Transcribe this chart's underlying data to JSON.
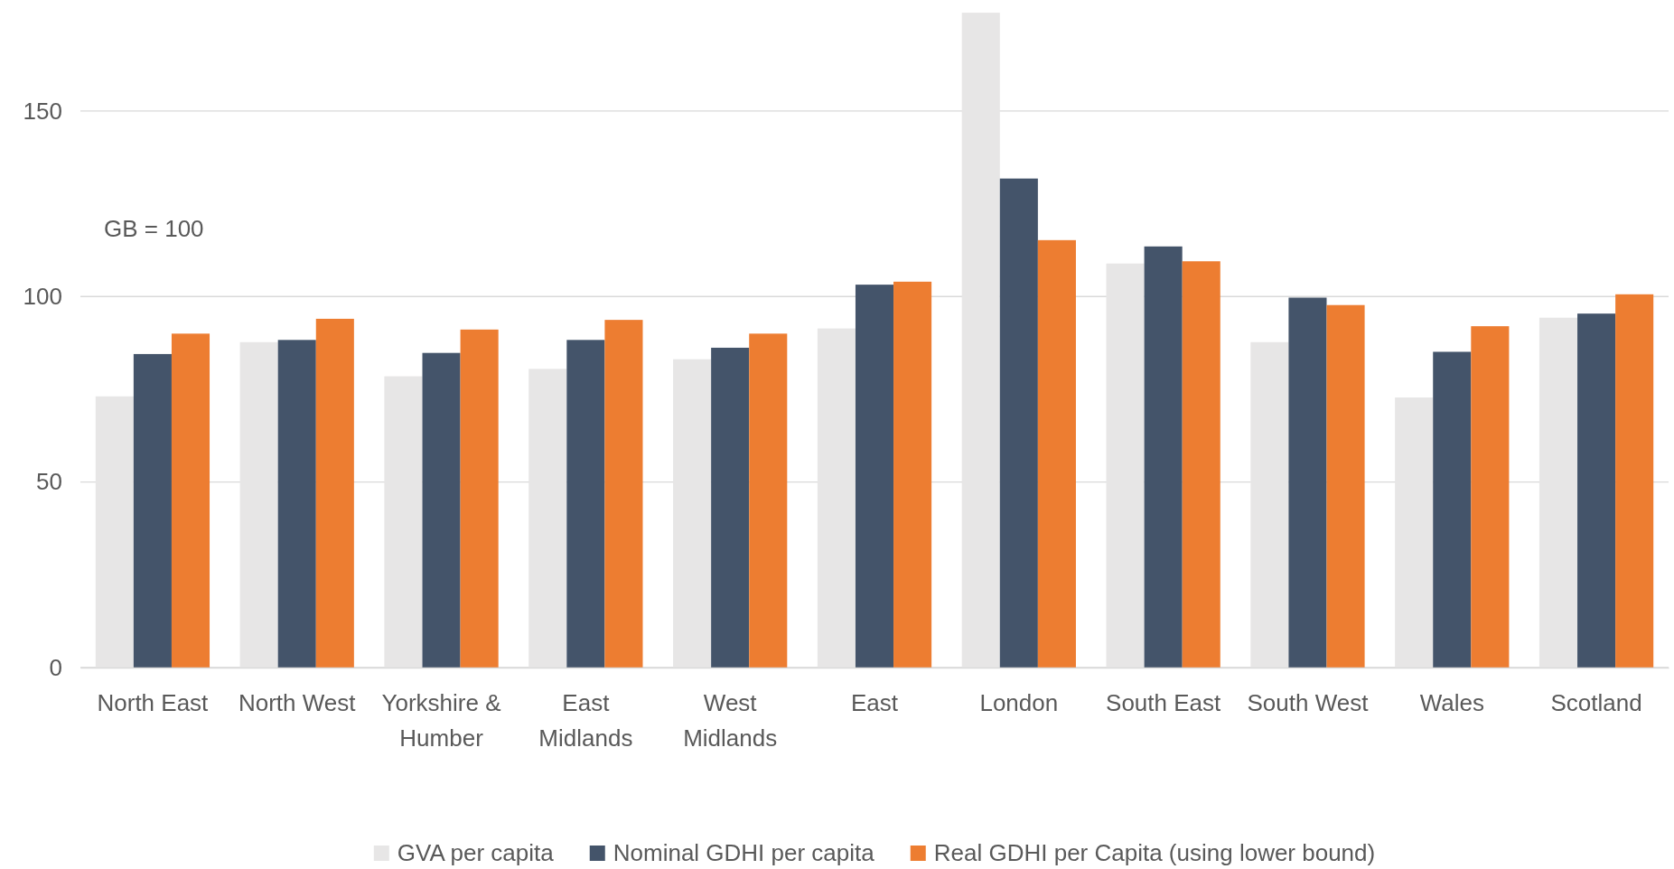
{
  "chart_data": {
    "type": "bar",
    "categories": [
      "North East",
      "North West",
      "Yorkshire & Humber",
      "East Midlands",
      "West Midlands",
      "East",
      "London",
      "South East",
      "South West",
      "Wales",
      "Scotland"
    ],
    "series": [
      {
        "name": "GVA per capita",
        "color": "#e7e6e6",
        "values": [
          73.1,
          87.7,
          78.5,
          80.5,
          83.1,
          91.4,
          176.5,
          108.9,
          87.7,
          72.8,
          94.3
        ]
      },
      {
        "name": "Nominal GDHI per capita",
        "color": "#44546a",
        "values": [
          84.5,
          88.3,
          84.8,
          88.3,
          86.2,
          103.2,
          131.8,
          113.5,
          99.7,
          85.1,
          95.4
        ]
      },
      {
        "name": "Real GDHI per Capita (using lower bound)",
        "color": "#ed7d31",
        "values": [
          90.0,
          94.0,
          91.1,
          93.7,
          90.0,
          104.0,
          115.2,
          109.5,
          97.7,
          92.0,
          100.6
        ]
      }
    ],
    "ylim": [
      0,
      177
    ],
    "yticks": [
      0,
      50,
      100,
      150
    ],
    "grid": "y",
    "legend": "bottom",
    "annotations": [
      "GB = 100"
    ]
  }
}
